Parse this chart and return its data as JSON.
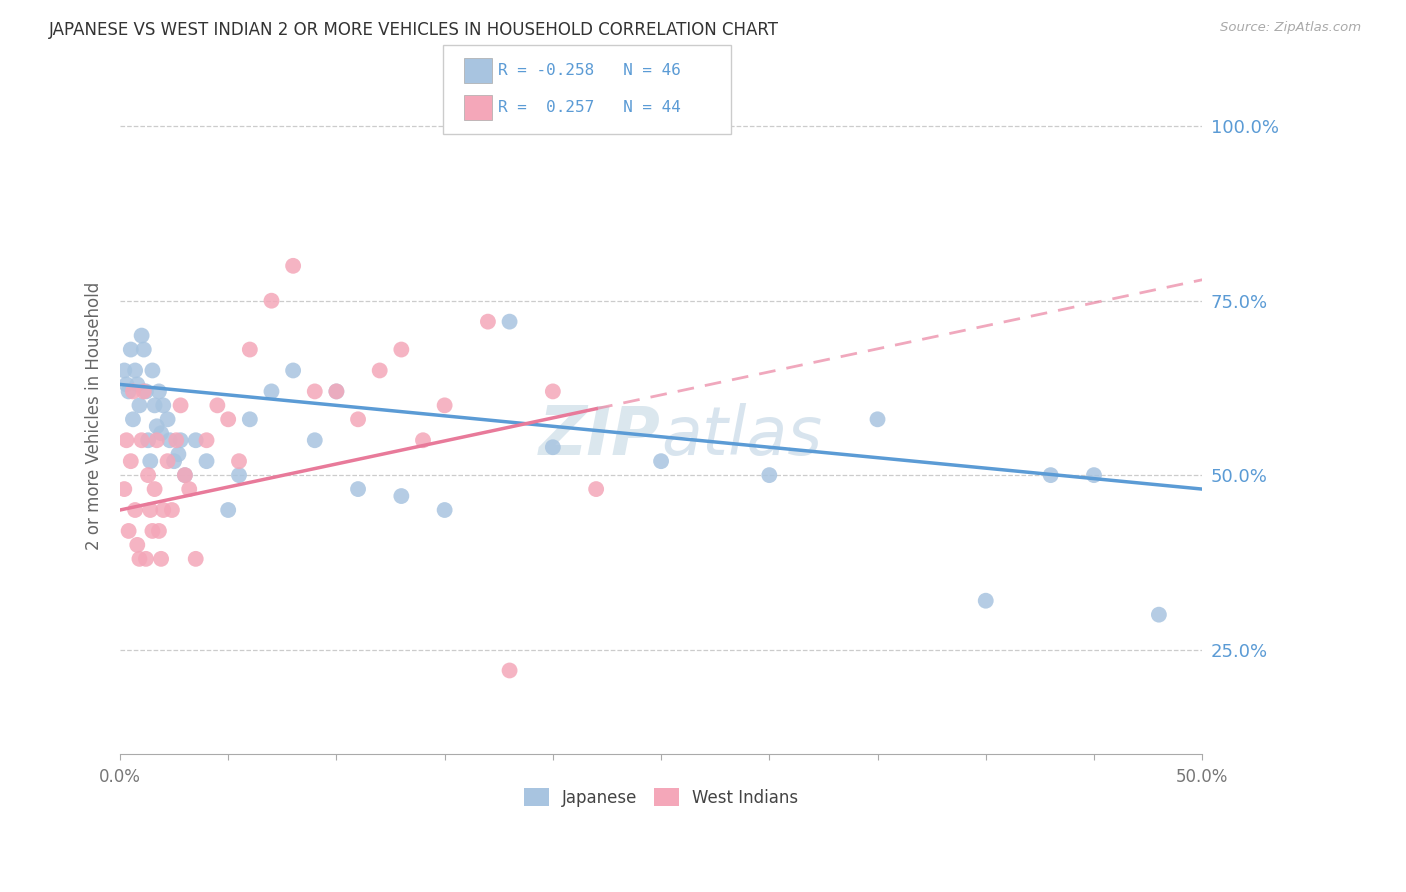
{
  "title": "JAPANESE VS WEST INDIAN 2 OR MORE VEHICLES IN HOUSEHOLD CORRELATION CHART",
  "source": "Source: ZipAtlas.com",
  "ylabel": "2 or more Vehicles in Household",
  "ytick_vals": [
    25.0,
    50.0,
    75.0,
    100.0
  ],
  "ytick_labels": [
    "25.0%",
    "50.0%",
    "75.0%",
    "100.0%"
  ],
  "xmin": 0.0,
  "xmax": 50.0,
  "ymin": 10.0,
  "ymax": 107.0,
  "legend_label_blue": "Japanese",
  "legend_label_pink": "West Indians",
  "blue_dot_color": "#a8c4e0",
  "pink_dot_color": "#f4a7b9",
  "blue_line_color": "#5b9bd5",
  "pink_line_color": "#e87a9a",
  "legend_text_color": "#5b9bd5",
  "ytick_color": "#5b9bd5",
  "xtick_color": "#777777",
  "watermark_color": "#ccdde8",
  "blue_line_x0": 0.0,
  "blue_line_y0": 63.0,
  "blue_line_x1": 50.0,
  "blue_line_y1": 48.0,
  "pink_line_x0": 0.0,
  "pink_line_y0": 45.0,
  "pink_line_x1": 50.0,
  "pink_line_y1": 78.0,
  "pink_solid_xmax": 22.0,
  "japanese_x": [
    0.2,
    0.3,
    0.4,
    0.5,
    0.6,
    0.7,
    0.8,
    0.9,
    1.0,
    1.1,
    1.2,
    1.3,
    1.5,
    1.6,
    1.7,
    1.8,
    2.0,
    2.2,
    2.5,
    2.8,
    3.0,
    3.5,
    4.0,
    5.0,
    5.5,
    6.0,
    7.0,
    8.0,
    9.0,
    10.0,
    11.0,
    13.0,
    15.0,
    18.0,
    20.0,
    25.0,
    30.0,
    35.0,
    40.0,
    43.0,
    45.0,
    48.0,
    1.4,
    1.9,
    2.3,
    2.7
  ],
  "japanese_y": [
    65.0,
    63.0,
    62.0,
    68.0,
    58.0,
    65.0,
    63.0,
    60.0,
    70.0,
    68.0,
    62.0,
    55.0,
    65.0,
    60.0,
    57.0,
    62.0,
    60.0,
    58.0,
    52.0,
    55.0,
    50.0,
    55.0,
    52.0,
    45.0,
    50.0,
    58.0,
    62.0,
    65.0,
    55.0,
    62.0,
    48.0,
    47.0,
    45.0,
    72.0,
    54.0,
    52.0,
    50.0,
    58.0,
    32.0,
    50.0,
    50.0,
    30.0,
    52.0,
    56.0,
    55.0,
    53.0
  ],
  "westindian_x": [
    0.2,
    0.3,
    0.4,
    0.5,
    0.6,
    0.7,
    0.8,
    0.9,
    1.0,
    1.1,
    1.2,
    1.3,
    1.4,
    1.5,
    1.6,
    1.7,
    1.8,
    1.9,
    2.0,
    2.2,
    2.4,
    2.6,
    2.8,
    3.0,
    3.2,
    3.5,
    4.0,
    4.5,
    5.0,
    5.5,
    6.0,
    7.0,
    8.0,
    9.0,
    10.0,
    11.0,
    12.0,
    13.0,
    14.0,
    15.0,
    17.0,
    18.0,
    20.0,
    22.0
  ],
  "westindian_y": [
    48.0,
    55.0,
    42.0,
    52.0,
    62.0,
    45.0,
    40.0,
    38.0,
    55.0,
    62.0,
    38.0,
    50.0,
    45.0,
    42.0,
    48.0,
    55.0,
    42.0,
    38.0,
    45.0,
    52.0,
    45.0,
    55.0,
    60.0,
    50.0,
    48.0,
    38.0,
    55.0,
    60.0,
    58.0,
    52.0,
    68.0,
    75.0,
    80.0,
    62.0,
    62.0,
    58.0,
    65.0,
    68.0,
    55.0,
    60.0,
    72.0,
    22.0,
    62.0,
    48.0
  ]
}
